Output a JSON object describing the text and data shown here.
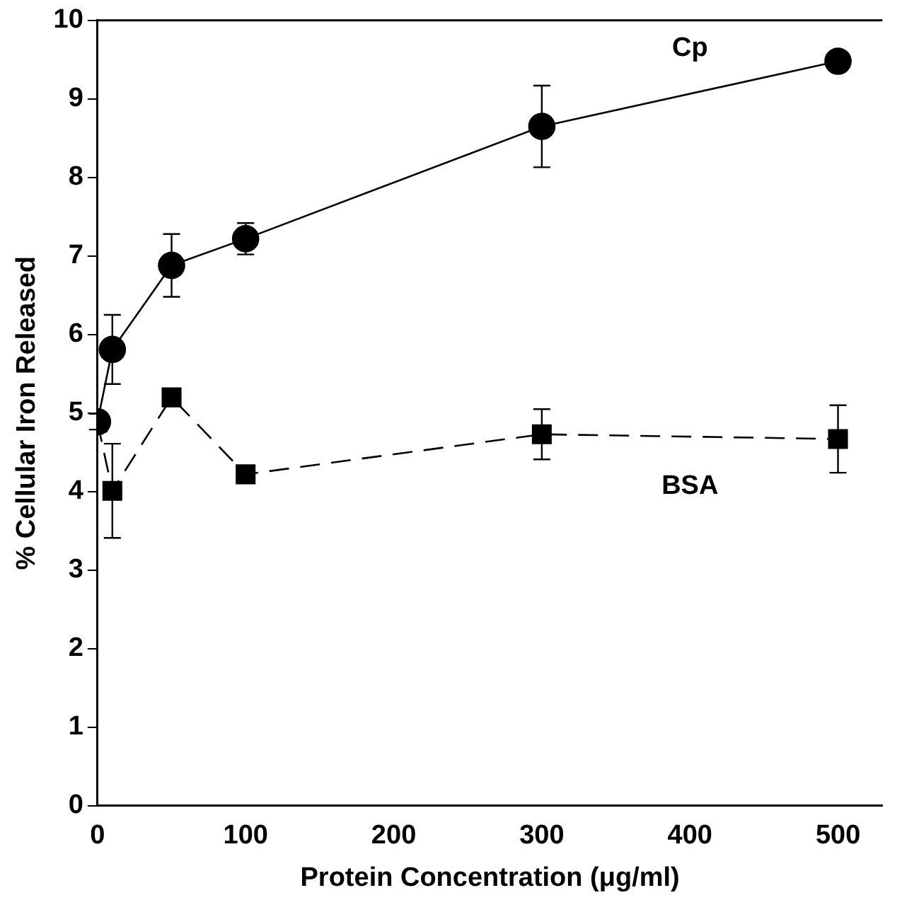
{
  "chart_data": {
    "type": "line",
    "xlabel": "Protein Concentration (μg/ml)",
    "ylabel": "% Cellular Iron Released",
    "xlim": [
      0,
      530
    ],
    "xticks": [
      0,
      100,
      200,
      300,
      400,
      500
    ],
    "ylim": [
      0,
      10
    ],
    "yticks": [
      0,
      1,
      2,
      3,
      4,
      5,
      6,
      7,
      8,
      9,
      10
    ],
    "grid": false,
    "legend": false,
    "series": [
      {
        "name": "Cp",
        "color": "#000000",
        "marker": "circle",
        "line_style": "solid",
        "x": [
          0,
          10,
          50,
          100,
          300,
          500
        ],
        "values": [
          4.89,
          5.81,
          6.88,
          7.22,
          8.65,
          9.48
        ],
        "errors": [
          0.1,
          0.44,
          0.4,
          0.2,
          0.52,
          null
        ]
      },
      {
        "name": "BSA",
        "color": "#000000",
        "marker": "square",
        "line_style": "dashed",
        "x": [
          0,
          10,
          50,
          100,
          300,
          500
        ],
        "values": [
          4.88,
          4.01,
          5.2,
          4.22,
          4.73,
          4.67
        ],
        "errors": [
          null,
          0.6,
          null,
          null,
          0.32,
          0.43
        ]
      }
    ]
  }
}
